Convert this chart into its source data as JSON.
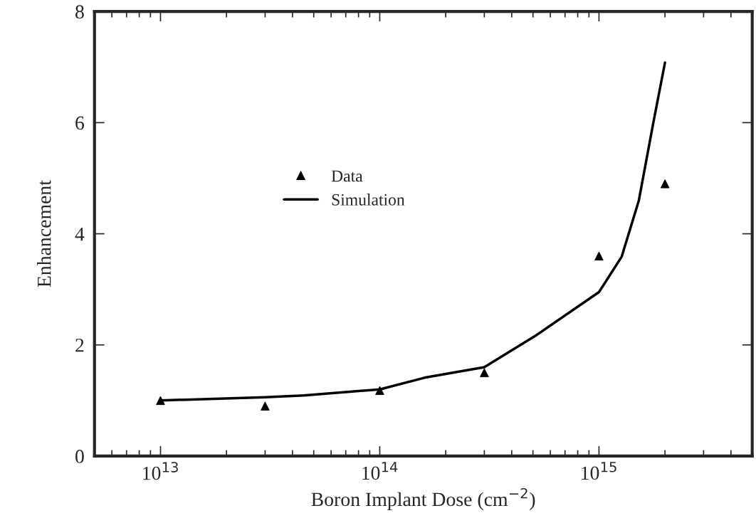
{
  "chart_data": {
    "type": "scatter",
    "xlabel": "Boron Implant Dose (cm$^{−2}$)",
    "ylabel": "Enhancement",
    "log": "x",
    "xlim": [
      5000000000000.0,
      5000000000000000.0
    ],
    "xticks": [
      {
        "value": 10000000000000.0,
        "label": "10$^{13}$"
      },
      {
        "value": 100000000000000.0,
        "label": "10$^{14}$"
      },
      {
        "value": 1000000000000000.0,
        "label": "10$^{15}$"
      }
    ],
    "ylim": [
      0,
      8
    ],
    "yticks": [
      0,
      2,
      4,
      6,
      8
    ],
    "grid": false,
    "legend": "center",
    "series": [
      {
        "name": "Data",
        "marker": "triangle",
        "color": "#000000",
        "x": [
          10000000000000.0,
          30000000000000.0,
          100000000000000.0,
          300000000000000.0,
          1000000000000000.0,
          2000000000000000.0
        ],
        "values": [
          1.0,
          0.9,
          1.18,
          1.5,
          3.6,
          4.9
        ]
      },
      {
        "name": "Simulation",
        "type": "line",
        "marker": "none",
        "line_style": "solid",
        "color": "#000000",
        "x": [
          10000000000000.0,
          30000000000000.0,
          45000000000000.0,
          100000000000000.0,
          160000000000000.0,
          300000000000000.0,
          520000000000000.0,
          1000000000000000.0,
          1270000000000000.0,
          1520000000000000.0,
          1770000000000000.0,
          2000000000000000.0
        ],
        "values": [
          1.0,
          1.06,
          1.09,
          1.2,
          1.41,
          1.6,
          2.18,
          2.95,
          3.59,
          4.6,
          6.0,
          7.08
        ]
      }
    ]
  }
}
